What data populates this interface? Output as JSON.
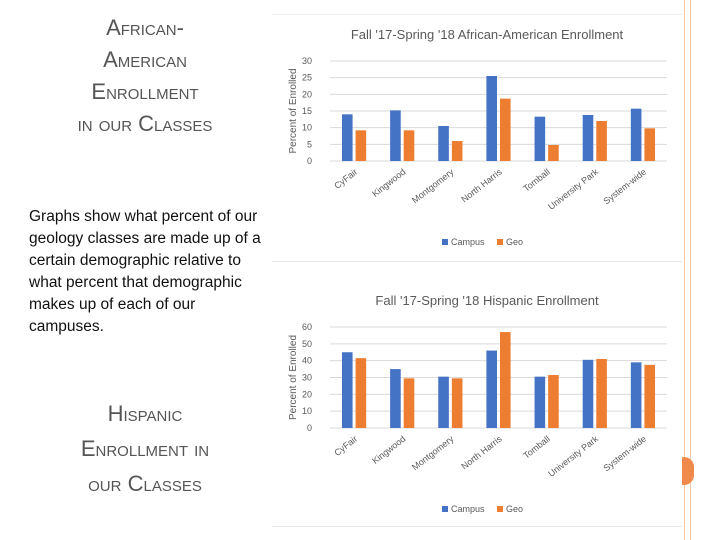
{
  "left_panel": {
    "title_top": [
      "African-",
      "American",
      "Enrollment",
      "in our Classes"
    ],
    "description": "Graphs show what percent of our geology classes are made up of a certain demographic relative to what percent that demographic makes up of each of our campuses.",
    "title_bottom": [
      "Hispanic",
      "Enrollment in",
      "our Classes"
    ]
  },
  "colors": {
    "campus": "#4472c4",
    "geo": "#ed7d31",
    "accent": "#f08a4b"
  },
  "chart_data": [
    {
      "type": "bar",
      "title": "Fall '17-Spring '18 African-American Enrollment",
      "ylabel": "Percent of Enrolled",
      "xlabel": "",
      "ylim": [
        0,
        30
      ],
      "yticks": [
        "0",
        "5",
        "10",
        "15",
        "20",
        "25",
        "30"
      ],
      "categories": [
        "CyFair",
        "Kingwood",
        "Montgomery",
        "North Harris",
        "Tomball",
        "University Park",
        "System-wide"
      ],
      "series": [
        {
          "name": "Campus",
          "values": [
            14,
            15.2,
            10.5,
            25.5,
            13.3,
            13.8,
            15.7
          ]
        },
        {
          "name": "Geo",
          "values": [
            9.2,
            9.2,
            6,
            18.7,
            4.8,
            12,
            9.8
          ]
        }
      ],
      "legend": "bottom"
    },
    {
      "type": "bar",
      "title": "Fall '17-Spring '18 Hispanic Enrollment",
      "ylabel": "Percent of Enrolled",
      "xlabel": "",
      "ylim": [
        0,
        60
      ],
      "yticks": [
        "0",
        "10",
        "20",
        "30",
        "40",
        "50",
        "60"
      ],
      "categories": [
        "CyFair",
        "Kingwood",
        "Montgomery",
        "North Harris",
        "Tomball",
        "University Park",
        "System-wide"
      ],
      "series": [
        {
          "name": "Campus",
          "values": [
            45,
            35,
            30.5,
            46,
            30.5,
            40.5,
            39
          ]
        },
        {
          "name": "Geo",
          "values": [
            41.5,
            29.5,
            29.5,
            57,
            31.5,
            41,
            37.5
          ]
        }
      ],
      "legend": "bottom"
    }
  ]
}
